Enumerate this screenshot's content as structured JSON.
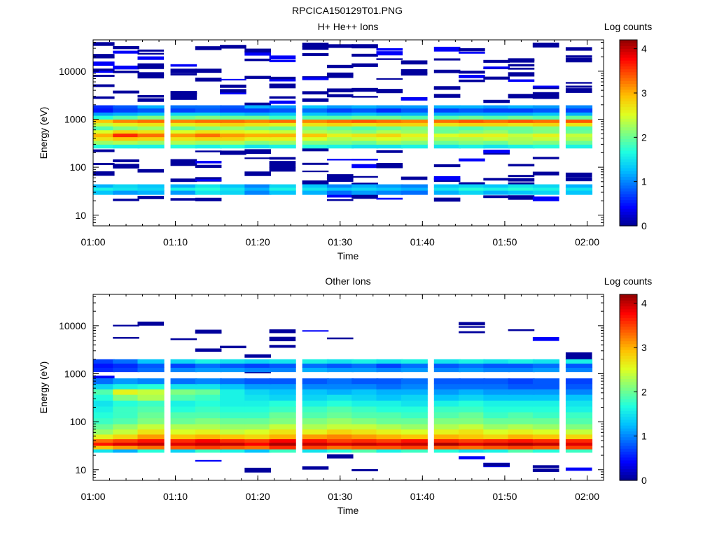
{
  "figure": {
    "title": "RPCICA150129T01.PNG",
    "background": "#ffffff"
  },
  "colormap": [
    "#00008f",
    "#0000ff",
    "#0060ff",
    "#00c0ff",
    "#20ffdf",
    "#80ff80",
    "#dfff20",
    "#ffc000",
    "#ff6000",
    "#ff0000",
    "#8f0000"
  ],
  "chart_data": [
    {
      "type": "heatmap",
      "title": "H+ He++ Ions",
      "xlabel": "Time",
      "ylabel": "Energy (eV)",
      "y_scale": "log",
      "ylim": [
        6,
        45000
      ],
      "xlim": [
        "01:00",
        "02:02"
      ],
      "x_ticks": [
        "01:00",
        "01:10",
        "01:20",
        "01:30",
        "01:40",
        "01:50",
        "02:00"
      ],
      "y_ticks": [
        "10",
        "100",
        "1000",
        "10000"
      ],
      "colorbar": {
        "label": "Log counts",
        "range": [
          0,
          4.2
        ],
        "ticks": [
          "0",
          "1",
          "2",
          "3",
          "4"
        ]
      },
      "time_bins": [
        "01:01",
        "01:04",
        "01:07",
        "01:11",
        "01:14",
        "01:17",
        "01:20",
        "01:23",
        "01:27",
        "01:30",
        "01:33",
        "01:36",
        "01:39",
        "01:43",
        "01:46",
        "01:49",
        "01:52",
        "01:55",
        "01:59"
      ],
      "bands": [
        {
          "e_min": 27,
          "e_max": 33,
          "values": [
            1.3,
            1.1,
            1.2,
            1.1,
            1.5,
            1.4,
            1.0,
            1.3,
            1.2,
            0.9,
            1.1,
            1.0,
            0.9,
            1.2,
            1.4,
            1.2,
            1.3,
            1.4,
            1.3
          ]
        },
        {
          "e_min": 33,
          "e_max": 38,
          "values": [
            1.6,
            1.5,
            1.4,
            1.6,
            1.7,
            1.5,
            1.2,
            1.6,
            1.5,
            1.3,
            1.4,
            1.3,
            1.2,
            1.5,
            1.7,
            1.6,
            1.7,
            1.6,
            1.5
          ]
        },
        {
          "e_min": 38,
          "e_max": 44,
          "values": [
            1.2,
            1.4,
            1.3,
            1.2,
            1.5,
            1.3,
            1.0,
            1.4,
            1.3,
            1.0,
            1.2,
            1.1,
            1.0,
            1.3,
            1.4,
            1.3,
            1.5,
            1.4,
            1.2
          ]
        },
        {
          "e_min": 250,
          "e_max": 300,
          "values": [
            1.7,
            1.6,
            1.6,
            1.7,
            1.6,
            1.7,
            1.5,
            1.6,
            1.7,
            1.6,
            1.5,
            1.5,
            1.6,
            1.5,
            1.6,
            1.5,
            1.6,
            1.7,
            1.6
          ]
        },
        {
          "e_min": 300,
          "e_max": 360,
          "values": [
            2.2,
            2.3,
            2.2,
            2.3,
            2.2,
            2.3,
            2.1,
            2.2,
            2.1,
            2.1,
            2.0,
            2.2,
            2.1,
            2.0,
            2.1,
            2.0,
            2.2,
            2.1,
            2.0
          ]
        },
        {
          "e_min": 360,
          "e_max": 430,
          "values": [
            2.7,
            2.9,
            2.8,
            2.7,
            2.8,
            2.8,
            2.6,
            2.6,
            2.5,
            2.3,
            2.4,
            2.5,
            2.4,
            2.3,
            2.3,
            2.4,
            2.3,
            2.4,
            2.3
          ]
        },
        {
          "e_min": 430,
          "e_max": 510,
          "values": [
            3.0,
            3.6,
            3.3,
            3.1,
            3.3,
            3.1,
            3.0,
            3.0,
            2.9,
            2.6,
            2.7,
            2.8,
            2.6,
            2.5,
            2.6,
            2.6,
            2.4,
            2.6,
            2.4
          ]
        },
        {
          "e_min": 510,
          "e_max": 600,
          "values": [
            2.5,
            2.8,
            2.7,
            2.5,
            2.7,
            2.6,
            2.5,
            2.4,
            2.3,
            2.2,
            2.1,
            2.3,
            2.2,
            2.0,
            2.1,
            2.2,
            2.0,
            2.1,
            2.0
          ]
        },
        {
          "e_min": 600,
          "e_max": 720,
          "values": [
            1.9,
            2.1,
            2.2,
            2.0,
            2.1,
            2.2,
            2.1,
            2.0,
            2.1,
            2.0,
            1.9,
            2.0,
            2.1,
            2.0,
            1.9,
            2.0,
            2.0,
            2.1,
            1.9
          ]
        },
        {
          "e_min": 720,
          "e_max": 850,
          "values": [
            2.4,
            2.6,
            2.7,
            2.6,
            2.7,
            2.8,
            2.7,
            2.6,
            2.7,
            2.8,
            2.7,
            2.8,
            2.8,
            2.7,
            2.8,
            2.8,
            2.7,
            2.8,
            2.7
          ]
        },
        {
          "e_min": 850,
          "e_max": 1000,
          "values": [
            2.9,
            3.2,
            3.3,
            3.2,
            3.3,
            3.3,
            3.2,
            3.3,
            3.2,
            3.3,
            3.4,
            3.3,
            3.2,
            3.3,
            3.4,
            3.3,
            3.4,
            3.3,
            3.4
          ]
        },
        {
          "e_min": 1000,
          "e_max": 1200,
          "values": [
            1.7,
            1.9,
            2.1,
            2.0,
            2.1,
            2.0,
            2.0,
            1.8,
            1.9,
            1.9,
            2.0,
            2.0,
            1.9,
            1.9,
            2.0,
            1.9,
            2.0,
            1.9,
            2.0
          ]
        },
        {
          "e_min": 1200,
          "e_max": 1400,
          "values": [
            1.1,
            1.2,
            1.3,
            1.4,
            1.4,
            1.3,
            1.2,
            1.3,
            1.3,
            1.2,
            1.3,
            1.2,
            1.2,
            1.2,
            1.2,
            1.2,
            1.2,
            1.3,
            1.2
          ]
        },
        {
          "e_min": 1400,
          "e_max": 1700,
          "values": [
            0.5,
            0.7,
            0.8,
            0.7,
            0.8,
            0.7,
            0.7,
            0.8,
            0.9,
            0.7,
            0.8,
            0.6,
            0.8,
            0.7,
            0.8,
            0.7,
            0.7,
            0.8,
            0.7
          ]
        },
        {
          "e_min": 1700,
          "e_max": 1950,
          "values": [
            0.6,
            0.8,
            1.2,
            0.9,
            0.9,
            0.8,
            1.2,
            1.1,
            1.3,
            1.1,
            1.2,
            1.1,
            1.1,
            1.2,
            1.2,
            1.1,
            1.2,
            1.1,
            1.0
          ]
        }
      ],
      "sparse_counts": {
        "value": 0.05,
        "energy_range": [
          20,
          38000
        ]
      }
    },
    {
      "type": "heatmap",
      "title": "Other Ions",
      "xlabel": "Time",
      "ylabel": "Energy (eV)",
      "y_scale": "log",
      "ylim": [
        6,
        45000
      ],
      "xlim": [
        "01:00",
        "02:02"
      ],
      "x_ticks": [
        "01:00",
        "01:10",
        "01:20",
        "01:30",
        "01:40",
        "01:50",
        "02:00"
      ],
      "y_ticks": [
        "10",
        "100",
        "1000",
        "10000"
      ],
      "colorbar": {
        "label": "Log counts",
        "range": [
          0,
          4.2
        ],
        "ticks": [
          "0",
          "1",
          "2",
          "3",
          "4"
        ]
      },
      "time_bins": [
        "01:01",
        "01:04",
        "01:07",
        "01:11",
        "01:14",
        "01:17",
        "01:20",
        "01:23",
        "01:27",
        "01:30",
        "01:33",
        "01:36",
        "01:39",
        "01:43",
        "01:46",
        "01:49",
        "01:52",
        "01:55",
        "01:59"
      ],
      "bands": [
        {
          "e_min": 23,
          "e_max": 27,
          "values": [
            1.5,
            1.2,
            1.7,
            1.4,
            1.8,
            1.6,
            1.3,
            1.8,
            1.5,
            1.7,
            1.9,
            1.6,
            1.8,
            1.7,
            1.5,
            1.6,
            1.9,
            1.7,
            1.8
          ]
        },
        {
          "e_min": 27,
          "e_max": 32,
          "values": [
            2.9,
            3.1,
            3.3,
            3.4,
            3.5,
            3.4,
            3.3,
            3.6,
            3.5,
            3.3,
            3.4,
            3.4,
            3.5,
            3.4,
            3.3,
            3.4,
            3.5,
            3.4,
            3.5
          ]
        },
        {
          "e_min": 32,
          "e_max": 37,
          "values": [
            3.7,
            3.9,
            4.0,
            3.9,
            4.0,
            4.0,
            3.8,
            4.1,
            4.0,
            3.9,
            4.0,
            3.9,
            4.0,
            4.1,
            3.9,
            4.0,
            4.1,
            4.0,
            3.9
          ]
        },
        {
          "e_min": 37,
          "e_max": 44,
          "values": [
            3.3,
            3.5,
            3.7,
            3.6,
            3.8,
            3.6,
            3.5,
            3.8,
            3.7,
            3.5,
            3.6,
            3.5,
            3.7,
            3.6,
            3.5,
            3.6,
            3.7,
            3.6,
            3.6
          ]
        },
        {
          "e_min": 44,
          "e_max": 55,
          "values": [
            2.6,
            2.8,
            3.1,
            2.9,
            3.0,
            2.9,
            2.8,
            3.0,
            3.1,
            3.2,
            3.1,
            3.0,
            2.9,
            3.0,
            2.9,
            2.8,
            3.0,
            2.9,
            2.8
          ]
        },
        {
          "e_min": 55,
          "e_max": 70,
          "values": [
            2.2,
            2.4,
            2.7,
            2.5,
            2.6,
            2.4,
            2.5,
            2.7,
            2.6,
            2.8,
            2.7,
            2.6,
            2.5,
            2.6,
            2.7,
            2.5,
            2.6,
            2.5,
            2.4
          ]
        },
        {
          "e_min": 70,
          "e_max": 90,
          "values": [
            2.0,
            2.2,
            2.4,
            2.3,
            2.3,
            2.2,
            2.2,
            2.4,
            2.3,
            2.4,
            2.4,
            2.3,
            2.2,
            2.3,
            2.4,
            2.2,
            2.3,
            2.2,
            2.1
          ]
        },
        {
          "e_min": 90,
          "e_max": 120,
          "values": [
            1.8,
            1.9,
            2.1,
            2.0,
            2.1,
            2.0,
            2.0,
            2.1,
            2.1,
            2.2,
            2.1,
            2.0,
            2.0,
            2.1,
            2.1,
            2.0,
            2.0,
            2.0,
            1.9
          ]
        },
        {
          "e_min": 120,
          "e_max": 160,
          "values": [
            1.7,
            1.8,
            2.0,
            1.9,
            1.9,
            1.8,
            1.8,
            2.0,
            1.9,
            2.0,
            1.9,
            1.9,
            1.8,
            1.9,
            2.0,
            1.8,
            1.9,
            1.8,
            1.8
          ]
        },
        {
          "e_min": 160,
          "e_max": 210,
          "values": [
            1.6,
            1.8,
            1.9,
            1.7,
            1.8,
            1.7,
            1.7,
            1.8,
            1.8,
            1.9,
            1.8,
            1.7,
            1.7,
            1.8,
            1.8,
            1.7,
            1.7,
            1.7,
            1.6
          ]
        },
        {
          "e_min": 210,
          "e_max": 280,
          "values": [
            1.5,
            1.7,
            1.8,
            1.6,
            1.7,
            1.6,
            1.6,
            1.7,
            1.6,
            1.7,
            1.6,
            1.6,
            1.5,
            1.6,
            1.7,
            1.6,
            1.6,
            1.6,
            1.5
          ]
        },
        {
          "e_min": 280,
          "e_max": 370,
          "values": [
            1.7,
            2.1,
            2.3,
            1.9,
            1.8,
            1.6,
            1.5,
            1.4,
            1.4,
            1.5,
            1.4,
            1.3,
            1.4,
            1.3,
            1.4,
            1.3,
            1.3,
            1.3,
            1.3
          ]
        },
        {
          "e_min": 370,
          "e_max": 480,
          "values": [
            1.9,
            2.6,
            2.4,
            2.1,
            2.0,
            1.6,
            1.4,
            1.3,
            1.3,
            1.2,
            1.3,
            1.2,
            1.2,
            1.1,
            1.2,
            1.1,
            1.1,
            1.1,
            1.0
          ]
        },
        {
          "e_min": 480,
          "e_max": 620,
          "values": [
            1.4,
            1.6,
            1.7,
            1.5,
            1.5,
            1.3,
            1.1,
            1.1,
            1.0,
            1.0,
            1.0,
            0.9,
            1.0,
            0.9,
            0.9,
            0.9,
            0.8,
            0.8,
            0.8
          ]
        },
        {
          "e_min": 620,
          "e_max": 800,
          "values": [
            0.9,
            1.1,
            1.0,
            0.9,
            1.0,
            0.9,
            0.8,
            0.8,
            0.8,
            0.9,
            0.8,
            0.8,
            0.9,
            0.8,
            0.8,
            0.8,
            0.7,
            0.8,
            0.7
          ]
        },
        {
          "e_min": 1100,
          "e_max": 1350,
          "values": [
            0.6,
            0.7,
            0.9,
            1.0,
            1.1,
            1.1,
            1.0,
            1.0,
            1.2,
            1.1,
            1.1,
            1.0,
            1.1,
            1.0,
            1.1,
            1.0,
            1.0,
            1.1,
            1.0
          ]
        },
        {
          "e_min": 1350,
          "e_max": 1650,
          "values": [
            0.5,
            0.6,
            0.8,
            0.7,
            0.9,
            0.8,
            0.7,
            0.8,
            0.9,
            0.8,
            0.9,
            0.7,
            0.9,
            0.8,
            0.9,
            0.8,
            0.8,
            0.9,
            0.8
          ]
        },
        {
          "e_min": 1650,
          "e_max": 2000,
          "values": [
            0.7,
            0.9,
            1.3,
            1.4,
            1.6,
            1.5,
            1.4,
            1.5,
            1.6,
            1.5,
            1.6,
            1.5,
            1.6,
            1.5,
            1.6,
            1.5,
            1.6,
            1.5,
            1.6
          ]
        }
      ],
      "sparse_counts": {
        "value": 0.05,
        "energy_range": [
          8,
          18000
        ]
      }
    }
  ]
}
